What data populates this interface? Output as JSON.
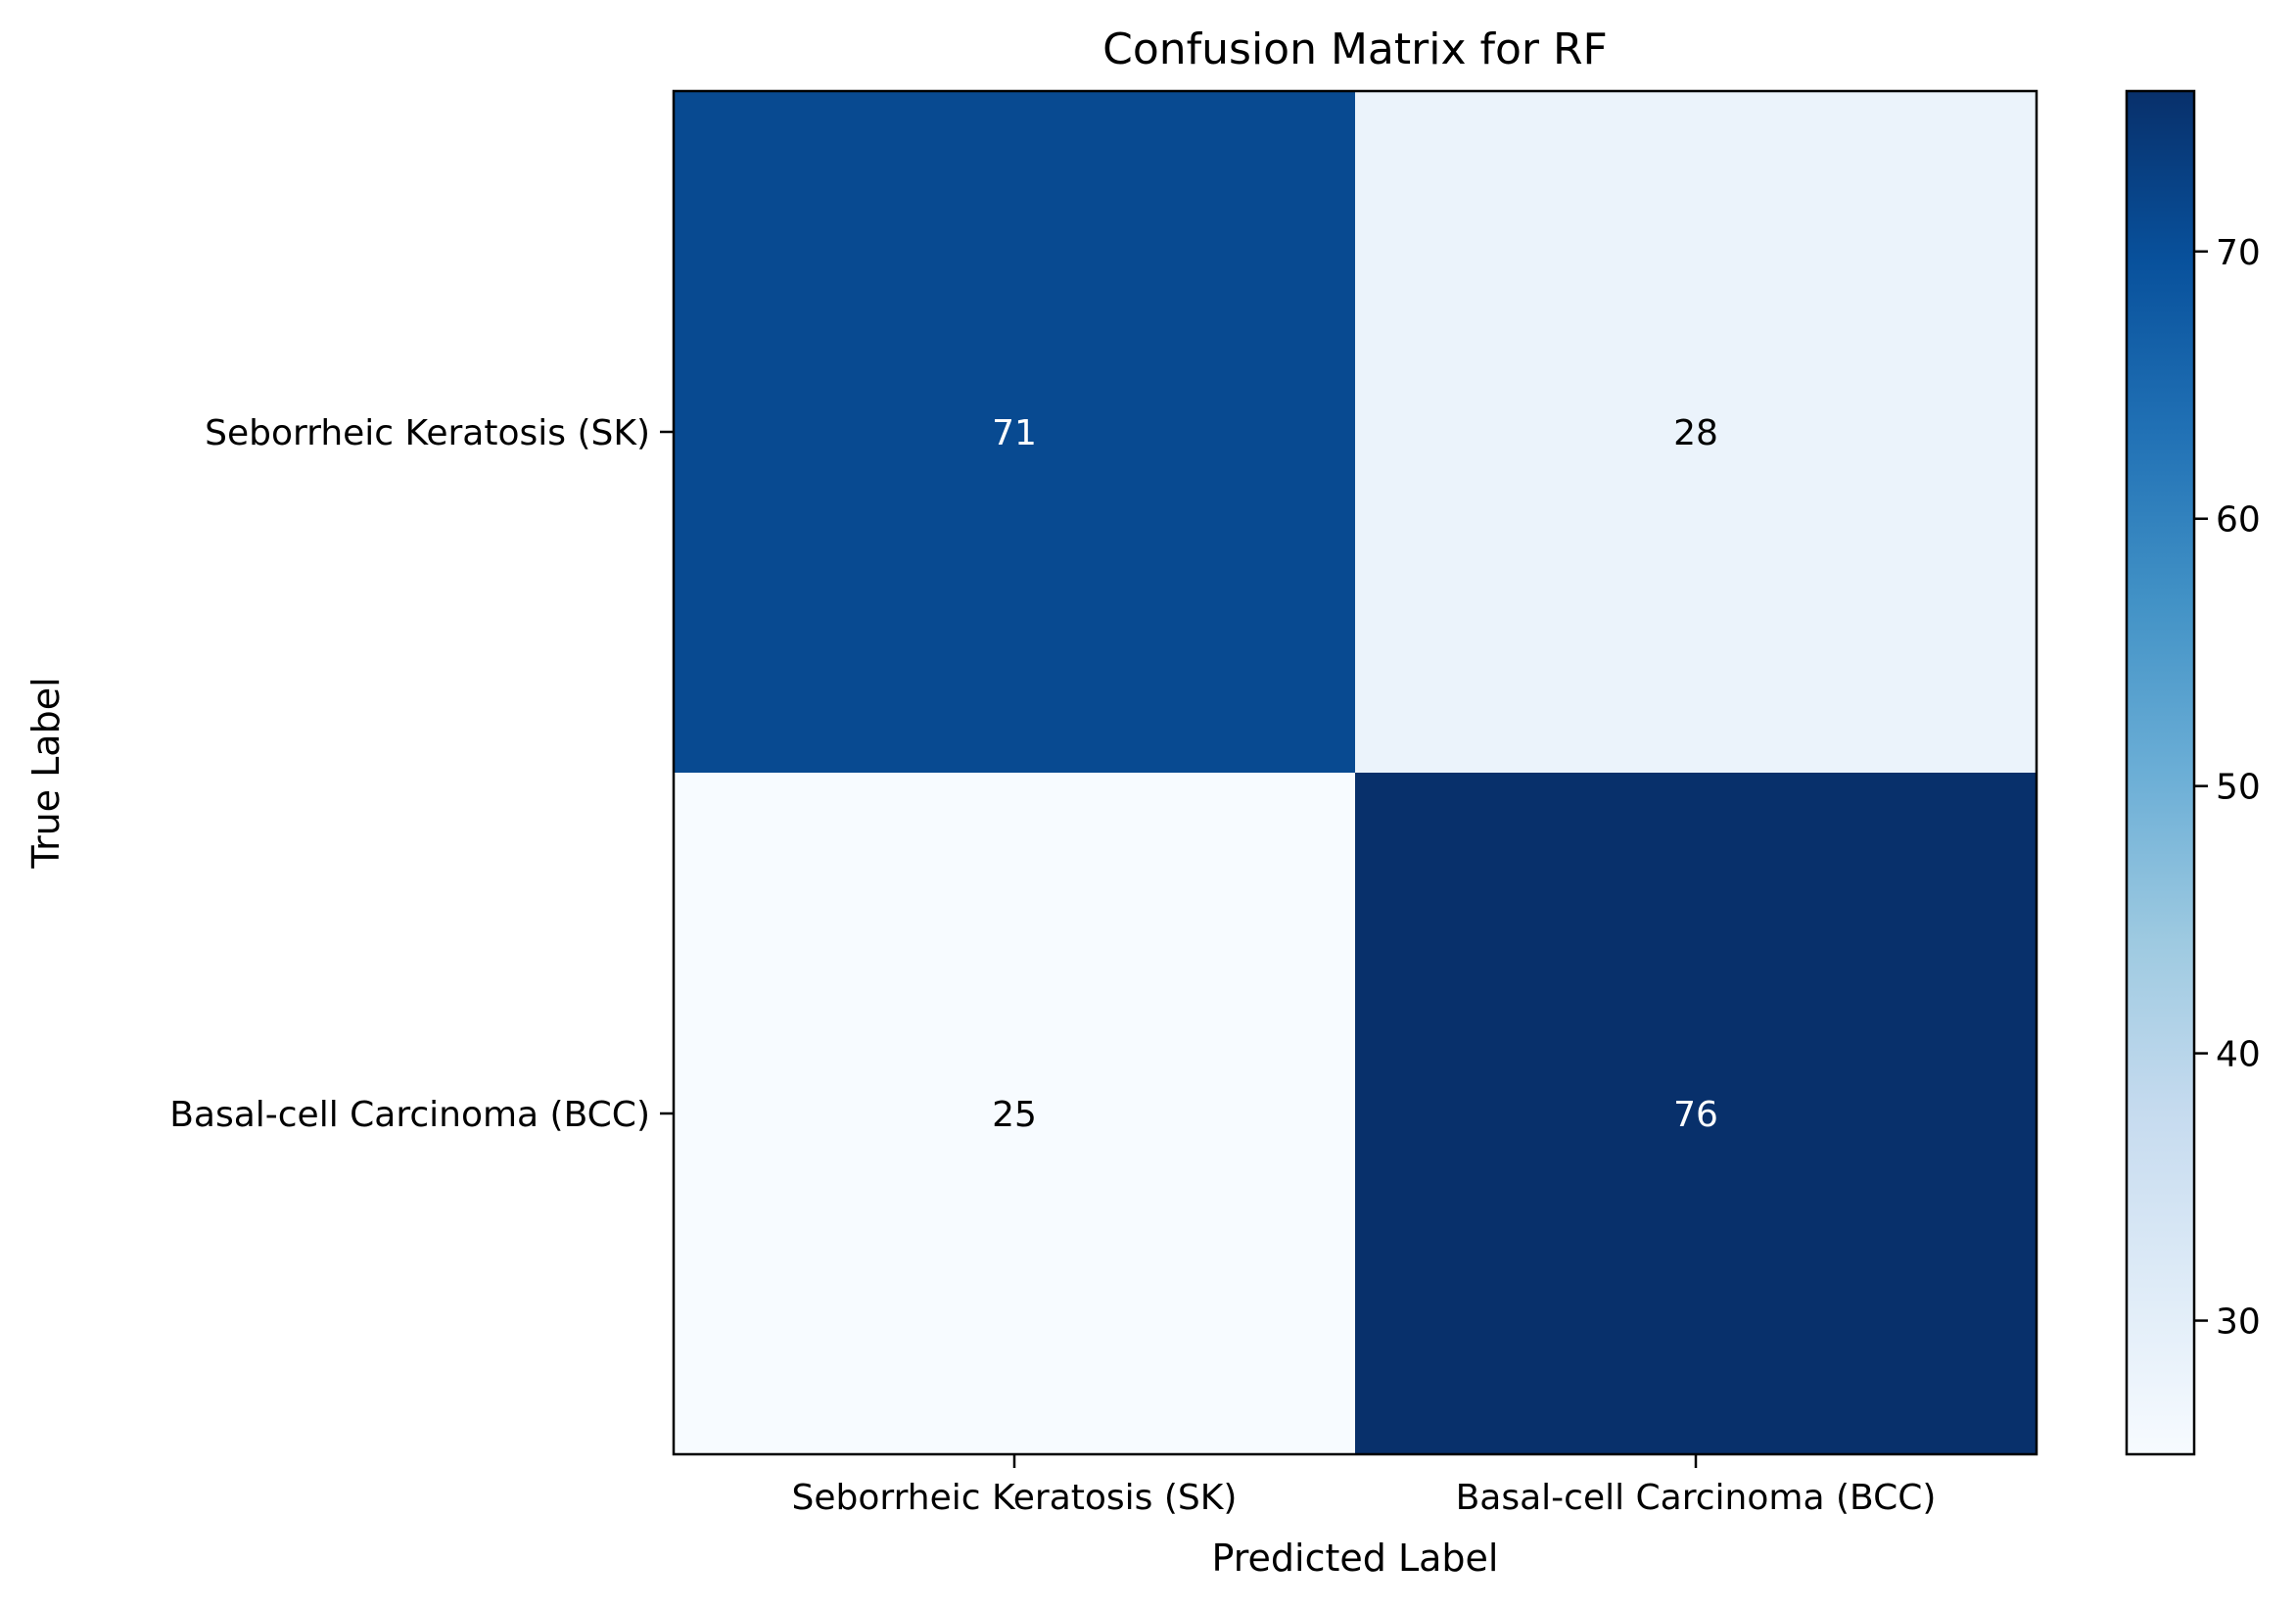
{
  "chart_data": {
    "type": "heatmap",
    "title": "Confusion Matrix for RF",
    "xlabel": "Predicted Label",
    "ylabel": "True Label",
    "x_categories": [
      "Seborrheic Keratosis (SK)",
      "Basal-cell Carcinoma (BCC)"
    ],
    "y_categories": [
      "Seborrheic Keratosis (SK)",
      "Basal-cell Carcinoma (BCC)"
    ],
    "values": [
      [
        71,
        28
      ],
      [
        25,
        76
      ]
    ],
    "colorbar": {
      "colormap": "Blues",
      "range": [
        25,
        76
      ],
      "ticks": [
        30,
        40,
        50,
        60,
        70
      ]
    },
    "colors": {
      "low": "#f7fbff",
      "high": "#08306b"
    }
  }
}
